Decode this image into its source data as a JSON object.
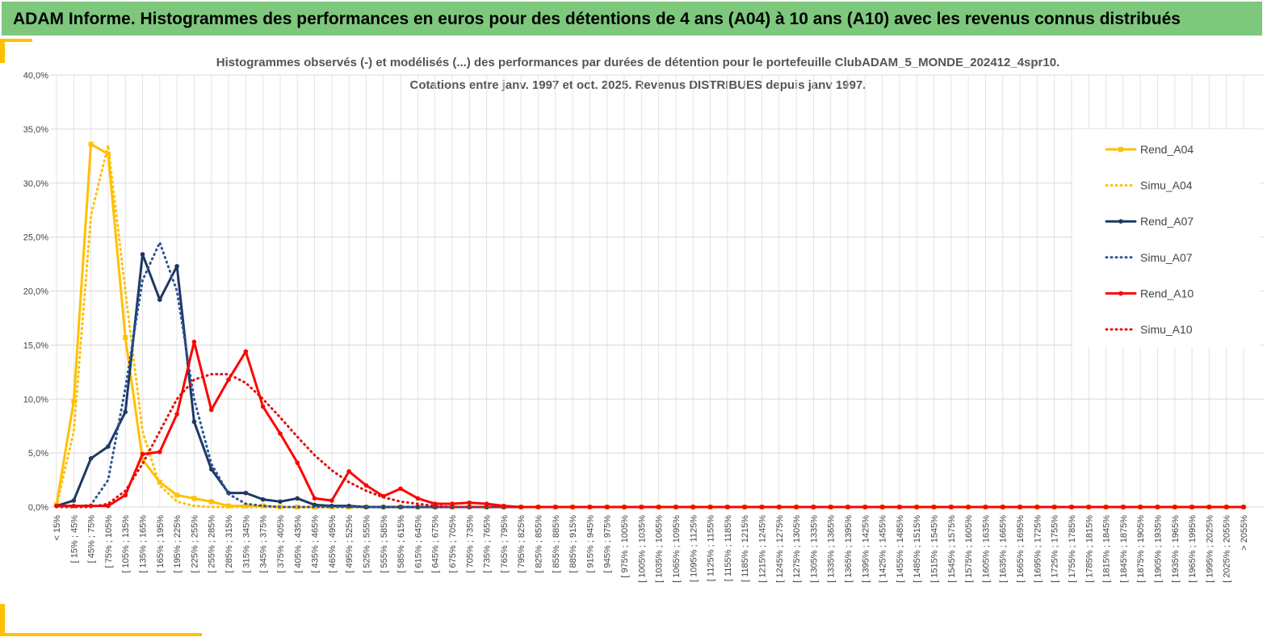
{
  "header": {
    "title": "ADAM Informe. Histogrammes des performances en euros pour des détentions de 4 ans (A04) à 10 ans (A10) avec les revenus connus distribués"
  },
  "chart_data": {
    "type": "line",
    "title": "Histogrammes observés (-) et modélisés (...) des performances par durées de détention pour le portefeuille ClubADAM_5_MONDE_202412_4spr10.",
    "subtitle": "Cotations entre janv. 1997 et oct. 2025. Revenus DISTRIBUES depuis janv 1997.",
    "categories": [
      "< 15%",
      "[ 15% ; 45%",
      "[ 45% ; 75%",
      "[ 75% ; 105%",
      "[ 105% ; 135%",
      "[ 135% ; 165%",
      "[ 165% ; 195%",
      "[ 195% ; 225%",
      "[ 225% ; 255%",
      "[ 255% ; 285%",
      "[ 285% ; 315%",
      "[ 315% ; 345%",
      "[ 345% ; 375%",
      "[ 375% ; 405%",
      "[ 405% ; 435%",
      "[ 435% ; 465%",
      "[ 465% ; 495%",
      "[ 495% ; 525%",
      "[ 525% ; 555%",
      "[ 555% ; 585%",
      "[ 585% ; 615%",
      "[ 615% ; 645%",
      "[ 645% ; 675%",
      "[ 675% ; 705%",
      "[ 705% ; 735%",
      "[ 735% ; 765%",
      "[ 765% ; 795%",
      "[ 795% ; 825%",
      "[ 825% ; 855%",
      "[ 855% ; 885%",
      "[ 885% ; 915%",
      "[ 915% ; 945%",
      "[ 945% ; 975%",
      "[ 975% ; 1005%",
      "[ 1005% ; 1035%",
      "[ 1035% ; 1065%",
      "[ 1065% ; 1095%",
      "[ 1095% ; 1125%",
      "[ 1125% ; 1155%",
      "[ 1155% ; 1185%",
      "[ 1185% ; 1215%",
      "[ 1215% ; 1245%",
      "[ 1245% ; 1275%",
      "[ 1275% ; 1305%",
      "[ 1305% ; 1335%",
      "[ 1335% ; 1365%",
      "[ 1365% ; 1395%",
      "[ 1395% ; 1425%",
      "[ 1425% ; 1455%",
      "[ 1455% ; 1485%",
      "[ 1485% ; 1515%",
      "[ 1515% ; 1545%",
      "[ 1545% ; 1575%",
      "[ 1575% ; 1605%",
      "[ 1605% ; 1635%",
      "[ 1635% ; 1665%",
      "[ 1665% ; 1695%",
      "[ 1695% ; 1725%",
      "[ 1725% ; 1755%",
      "[ 1755% ; 1785%",
      "[ 1785% ; 1815%",
      "[ 1815% ; 1845%",
      "[ 1845% ; 1875%",
      "[ 1875% ; 1905%",
      "[ 1905% ; 1935%",
      "[ 1935% ; 1965%",
      "[ 1965% ; 1995%",
      "[ 1995% ; 2025%",
      "[ 2025% ; 2055%",
      "> 2055%"
    ],
    "series": [
      {
        "name": "Rend_A04",
        "color": "#ffc000",
        "dash": false,
        "marker": "square",
        "values": [
          0.2,
          9.8,
          33.6,
          32.7,
          15.7,
          4.4,
          2.3,
          1.1,
          0.8,
          0.5,
          0.1,
          0.1,
          0.1,
          0,
          0,
          0,
          0,
          0,
          0,
          0,
          0,
          0,
          0,
          0,
          0,
          0,
          0,
          0,
          0,
          0,
          0,
          0,
          0,
          0,
          0,
          0,
          0,
          0,
          0,
          0,
          0,
          0,
          0,
          0,
          0,
          0,
          0,
          0,
          0,
          0,
          0,
          0,
          0,
          0,
          0,
          0,
          0,
          0,
          0,
          0,
          0,
          0,
          0,
          0,
          0,
          0,
          0,
          0,
          0,
          0
        ]
      },
      {
        "name": "Simu_A04",
        "color": "#ffc000",
        "dash": true,
        "marker": null,
        "values": [
          0.1,
          7,
          27,
          33.5,
          20,
          7,
          2,
          0.5,
          0.1,
          0,
          0,
          0,
          0,
          0,
          0,
          0,
          0,
          0,
          0,
          0,
          0,
          0,
          0,
          0,
          0,
          0,
          0,
          0,
          0,
          0,
          0,
          0,
          0,
          0,
          0,
          0,
          0,
          0,
          0,
          0,
          0,
          0,
          0,
          0,
          0,
          0,
          0,
          0,
          0,
          0,
          0,
          0,
          0,
          0,
          0,
          0,
          0,
          0,
          0,
          0,
          0,
          0,
          0,
          0,
          0,
          0,
          0,
          0,
          0,
          0
        ]
      },
      {
        "name": "Rend_A07",
        "color": "#1f3864",
        "dash": false,
        "marker": "circle",
        "values": [
          0.1,
          0.6,
          4.5,
          5.6,
          8.8,
          23.4,
          19.2,
          22.3,
          7.9,
          3.5,
          1.3,
          1.3,
          0.7,
          0.5,
          0.8,
          0.2,
          0.1,
          0.1,
          0,
          0,
          0,
          0,
          0,
          0,
          0,
          0,
          0,
          0,
          0,
          0,
          0,
          0,
          0,
          0,
          0,
          0,
          0,
          0,
          0,
          0,
          0,
          0,
          0,
          0,
          0,
          0,
          0,
          0,
          0,
          0,
          0,
          0,
          0,
          0,
          0,
          0,
          0,
          0,
          0,
          0,
          0,
          0,
          0,
          0,
          0,
          0,
          0,
          0,
          0,
          0
        ]
      },
      {
        "name": "Simu_A07",
        "color": "#2f5597",
        "dash": true,
        "marker": null,
        "values": [
          0,
          0,
          0.2,
          2.5,
          11,
          21,
          24.5,
          20,
          10,
          4,
          1.2,
          0.3,
          0.1,
          0,
          0,
          0,
          0,
          0,
          0,
          0,
          0,
          0,
          0,
          0,
          0,
          0,
          0,
          0,
          0,
          0,
          0,
          0,
          0,
          0,
          0,
          0,
          0,
          0,
          0,
          0,
          0,
          0,
          0,
          0,
          0,
          0,
          0,
          0,
          0,
          0,
          0,
          0,
          0,
          0,
          0,
          0,
          0,
          0,
          0,
          0,
          0,
          0,
          0,
          0,
          0,
          0,
          0,
          0,
          0,
          0
        ]
      },
      {
        "name": "Rend_A10",
        "color": "#ff0000",
        "dash": false,
        "marker": "circle",
        "values": [
          0.1,
          0.1,
          0.1,
          0.1,
          1.1,
          4.9,
          5.1,
          8.6,
          15.3,
          9,
          11.8,
          14.4,
          9.3,
          6.8,
          4.1,
          0.8,
          0.6,
          3.3,
          2,
          1,
          1.7,
          0.8,
          0.3,
          0.3,
          0.4,
          0.3,
          0.1,
          0,
          0,
          0,
          0,
          0,
          0,
          0,
          0,
          0,
          0,
          0,
          0,
          0,
          0,
          0,
          0,
          0,
          0,
          0,
          0,
          0,
          0,
          0,
          0,
          0,
          0,
          0,
          0,
          0,
          0,
          0,
          0,
          0,
          0,
          0,
          0,
          0,
          0,
          0,
          0,
          0,
          0,
          0
        ]
      },
      {
        "name": "Simu_A10",
        "color": "#e01010",
        "dash": true,
        "marker": null,
        "values": [
          0,
          0,
          0,
          0.3,
          1.5,
          4,
          7,
          10,
          11.8,
          12.3,
          12.3,
          11.5,
          10,
          8.3,
          6.5,
          4.8,
          3.4,
          2.3,
          1.5,
          0.9,
          0.5,
          0.3,
          0.1,
          0,
          0,
          0,
          0,
          0,
          0,
          0,
          0,
          0,
          0,
          0,
          0,
          0,
          0,
          0,
          0,
          0,
          0,
          0,
          0,
          0,
          0,
          0,
          0,
          0,
          0,
          0,
          0,
          0,
          0,
          0,
          0,
          0,
          0,
          0,
          0,
          0,
          0,
          0,
          0,
          0,
          0,
          0,
          0,
          0,
          0,
          0
        ]
      }
    ],
    "ylim": [
      0,
      40
    ],
    "yticks": [
      {
        "value": 0,
        "label": "0,0%"
      },
      {
        "value": 5,
        "label": "5,0%"
      },
      {
        "value": 10,
        "label": "10,0%"
      },
      {
        "value": 15,
        "label": "15,0%"
      },
      {
        "value": 20,
        "label": "20,0%"
      },
      {
        "value": 25,
        "label": "25,0%"
      },
      {
        "value": 30,
        "label": "30,0%"
      },
      {
        "value": 35,
        "label": "35,0%"
      },
      {
        "value": 40,
        "label": "40,0%"
      }
    ],
    "grid": true,
    "legend": "right"
  }
}
